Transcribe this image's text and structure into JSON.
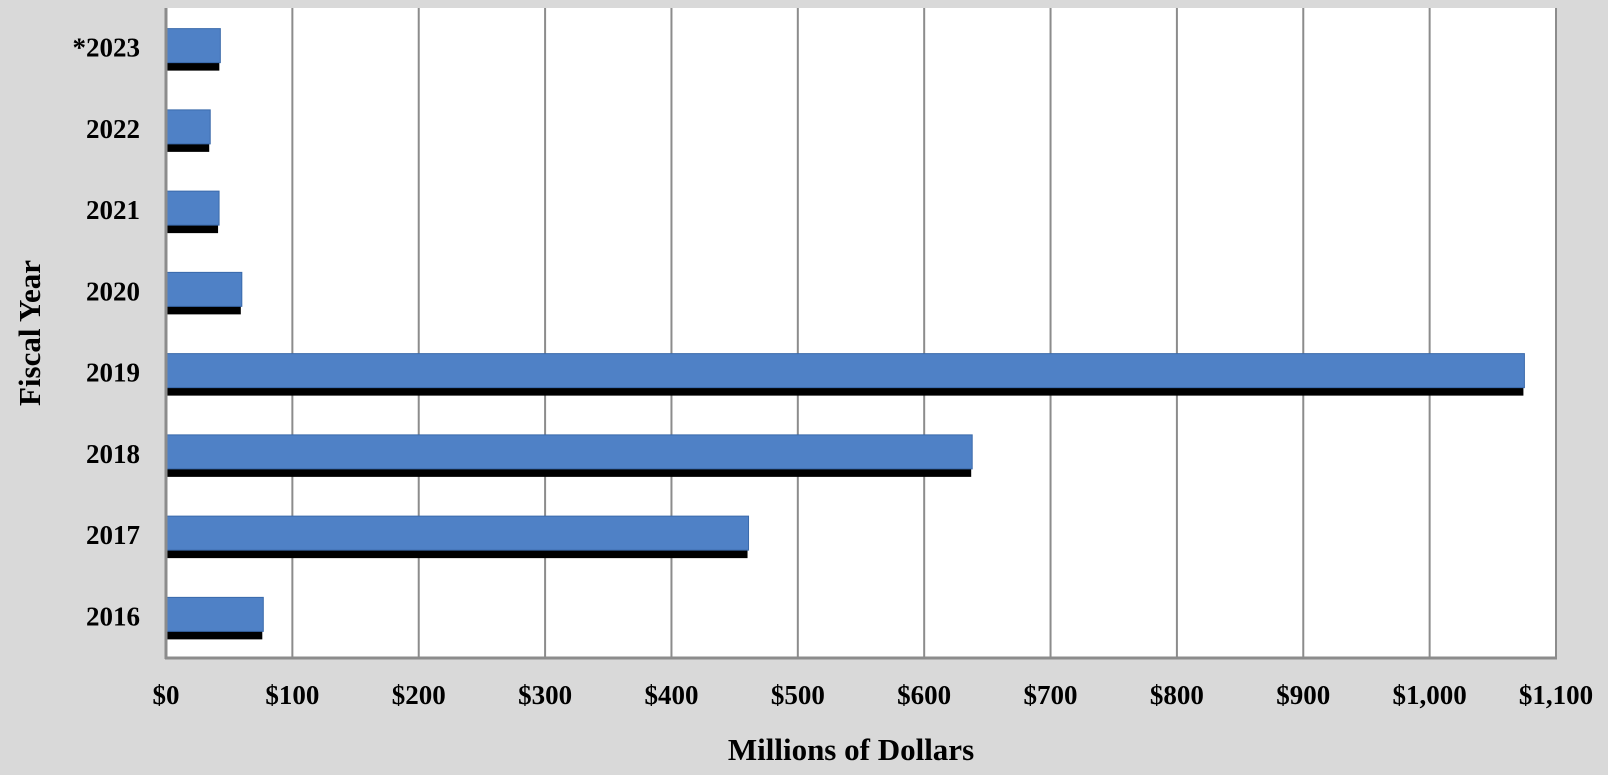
{
  "chart_data": {
    "type": "bar",
    "orientation": "horizontal",
    "title": "",
    "xlabel": "Millions of Dollars",
    "ylabel": "Fiscal Year",
    "categories": [
      "*2023",
      "2022",
      "2021",
      "2020",
      "2019",
      "2018",
      "2017",
      "2016"
    ],
    "values": [
      43,
      35,
      42,
      60,
      1075,
      638,
      461,
      77
    ],
    "xlim": [
      0,
      1100
    ],
    "xticks": [
      0,
      100,
      200,
      300,
      400,
      500,
      600,
      700,
      800,
      900,
      1000,
      1100
    ],
    "xtick_labels": [
      "$0",
      "$100",
      "$200",
      "$300",
      "$400",
      "$500",
      "$600",
      "$700",
      "$800",
      "$900",
      "$1,000",
      "$1,100"
    ],
    "grid": "vertical",
    "legend": "none",
    "colors": {
      "bar": "#4f81c6",
      "bar_shadow": "#000000",
      "plot_background": "#ffffff",
      "page_background": "#d9d9d9",
      "grid": "#8c8c8c",
      "axis": "#8c8c8c"
    }
  }
}
